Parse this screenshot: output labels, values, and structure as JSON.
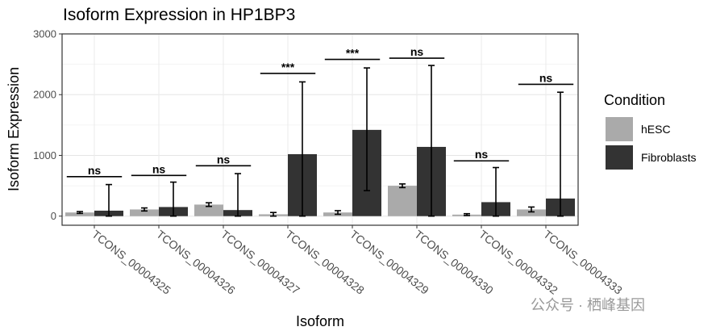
{
  "chart_data": {
    "type": "bar",
    "title": "Isoform Expression in HP1BP3",
    "xlabel": "Isoform",
    "ylabel": "Isoform Expression",
    "ylim": [
      -150,
      3000
    ],
    "yticks": [
      0,
      1000,
      2000,
      3000
    ],
    "grid": true,
    "categories": [
      "TCONS_00004325",
      "TCONS_00004326",
      "TCONS_00004327",
      "TCONS_00004328",
      "TCONS_00004329",
      "TCONS_00004330",
      "TCONS_00004332",
      "TCONS_00004333"
    ],
    "series": [
      {
        "name": "hESC",
        "color": "#aaaaaa",
        "values": [
          60,
          110,
          190,
          30,
          60,
          500,
          25,
          110
        ],
        "errors": [
          15,
          25,
          30,
          30,
          30,
          30,
          15,
          40
        ]
      },
      {
        "name": "Fibroblasts",
        "color": "#333333",
        "values": [
          90,
          150,
          100,
          1020,
          1420,
          1140,
          230,
          290
        ],
        "err_low": [
          90,
          150,
          100,
          1020,
          1000,
          1140,
          230,
          290
        ],
        "err_high": [
          430,
          410,
          600,
          1190,
          1020,
          1340,
          570,
          1750
        ]
      }
    ],
    "significance": [
      "ns",
      "ns",
      "ns",
      "***",
      "***",
      "ns",
      "ns",
      "ns"
    ],
    "significance_y": [
      650,
      670,
      830,
      2350,
      2580,
      2600,
      910,
      2170
    ],
    "legend": {
      "title": "Condition",
      "placement": "right",
      "entries": [
        "hESC",
        "Fibroblasts"
      ]
    }
  },
  "watermark": "公众号 · 栖峰基因"
}
